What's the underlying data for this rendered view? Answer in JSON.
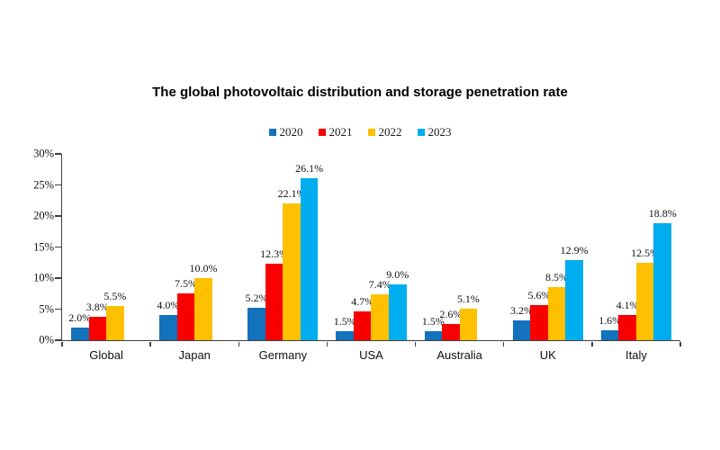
{
  "title": "The global photovoltaic distribution and storage penetration rate",
  "colors": {
    "axis": "#3f3f3f",
    "series_2020": "#1272BC",
    "series_2021": "#F90000",
    "series_2022": "#FFC000",
    "series_2023": "#00AEEF",
    "label_text": "#111111",
    "background": "#ffffff"
  },
  "chart_data": {
    "type": "bar",
    "title": "The global photovoltaic distribution and storage penetration rate",
    "categories": [
      "Global",
      "Japan",
      "Germany",
      "USA",
      "Australia",
      "UK",
      "Italy"
    ],
    "series": [
      {
        "name": "2020",
        "color": "#1272BC",
        "values": [
          2.0,
          4.0,
          5.2,
          1.5,
          1.5,
          3.2,
          1.6
        ]
      },
      {
        "name": "2021",
        "color": "#F90000",
        "values": [
          3.8,
          7.5,
          12.3,
          4.7,
          2.6,
          5.6,
          4.1
        ]
      },
      {
        "name": "2022",
        "color": "#FFC000",
        "values": [
          5.5,
          10.0,
          22.1,
          7.4,
          5.1,
          8.5,
          12.5
        ]
      },
      {
        "name": "2023",
        "color": "#00AEEF",
        "values": [
          null,
          null,
          26.1,
          9.0,
          null,
          12.9,
          18.8
        ]
      }
    ],
    "data_label_format": "one_decimal_percent",
    "xlabel": "",
    "ylabel": "",
    "ylim": [
      0,
      30
    ],
    "y_ticks": [
      {
        "value": 0,
        "label": "0%"
      },
      {
        "value": 5,
        "label": "5%"
      },
      {
        "value": 10,
        "label": "10%"
      },
      {
        "value": 15,
        "label": "15%"
      },
      {
        "value": 20,
        "label": "20%"
      },
      {
        "value": 25,
        "label": "25%"
      },
      {
        "value": 30,
        "label": "30%"
      }
    ],
    "grid": false,
    "legend_position": "top"
  }
}
